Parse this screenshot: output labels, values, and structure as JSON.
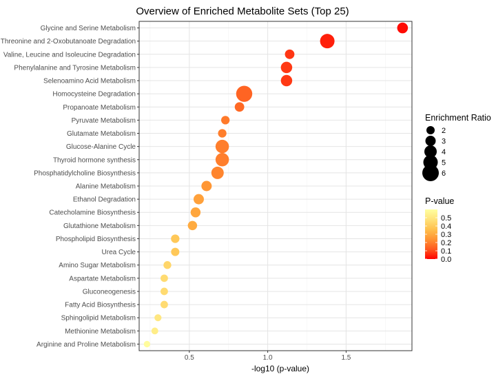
{
  "chart_data": {
    "type": "scatter",
    "title": "Overview of Enriched Metabolite Sets (Top 25)",
    "xlabel": "-log10 (p-value)",
    "ylabel": "",
    "xlim": [
      0.18,
      1.92
    ],
    "xticks": [
      0.5,
      1.0,
      1.5
    ],
    "xtick_labels": [
      "0.5",
      "1.0",
      "1.5"
    ],
    "grid": true,
    "categories": [
      "Glycine and Serine Metabolism",
      "Threonine and 2-Oxobutanoate Degradation",
      "Valine, Leucine and Isoleucine Degradation",
      "Phenylalanine and Tyrosine Metabolism",
      "Selenoamino Acid Metabolism",
      "Homocysteine Degradation",
      "Propanoate Metabolism",
      "Pyruvate Metabolism",
      "Glutamate Metabolism",
      "Glucose-Alanine Cycle",
      "Thyroid hormone synthesis",
      "Phosphatidylcholine Biosynthesis",
      "Alanine Metabolism",
      "Ethanol Degradation",
      "Catecholamine Biosynthesis",
      "Glutathione Metabolism",
      "Phospholipid Biosynthesis",
      "Urea Cycle",
      "Amino Sugar Metabolism",
      "Aspartate Metabolism",
      "Gluconeogenesis",
      "Fatty Acid Biosynthesis",
      "Sphingolipid Metabolism",
      "Methionine Metabolism",
      "Arginine and Proline Metabolism"
    ],
    "x": [
      1.86,
      1.38,
      1.14,
      1.12,
      1.12,
      0.85,
      0.82,
      0.73,
      0.71,
      0.71,
      0.71,
      0.68,
      0.61,
      0.56,
      0.54,
      0.52,
      0.41,
      0.41,
      0.36,
      0.34,
      0.34,
      0.34,
      0.3,
      0.28,
      0.23
    ],
    "enrichment_ratio": [
      3.2,
      5.0,
      2.6,
      3.5,
      3.5,
      5.8,
      2.6,
      2.1,
      2.1,
      4.5,
      4.5,
      4.0,
      3.0,
      3.0,
      2.8,
      2.5,
      2.1,
      2.0,
      1.8,
      1.6,
      1.6,
      1.6,
      1.4,
      1.3,
      1.1
    ],
    "p_value": [
      0.014,
      0.042,
      0.072,
      0.076,
      0.076,
      0.141,
      0.151,
      0.186,
      0.195,
      0.195,
      0.195,
      0.209,
      0.245,
      0.275,
      0.288,
      0.302,
      0.389,
      0.389,
      0.437,
      0.457,
      0.457,
      0.457,
      0.501,
      0.525,
      0.589
    ],
    "legend_size": {
      "title": "Enrichment Ratio",
      "values": [
        2,
        3,
        4,
        5,
        6
      ],
      "labels": [
        "2",
        "3",
        "4",
        "5",
        "6"
      ]
    },
    "legend_color": {
      "title": "P-value",
      "range": [
        0.0,
        0.6
      ],
      "ticks": [
        0.0,
        0.1,
        0.2,
        0.3,
        0.4,
        0.5
      ],
      "labels": [
        "0.0",
        "0.1",
        "0.2",
        "0.3",
        "0.4",
        "0.5"
      ],
      "colors": [
        "#ff0000",
        "#ff5a1f",
        "#ff9433",
        "#ffc04d",
        "#ffe27a",
        "#ffffa0"
      ]
    },
    "legend_position": "right"
  }
}
